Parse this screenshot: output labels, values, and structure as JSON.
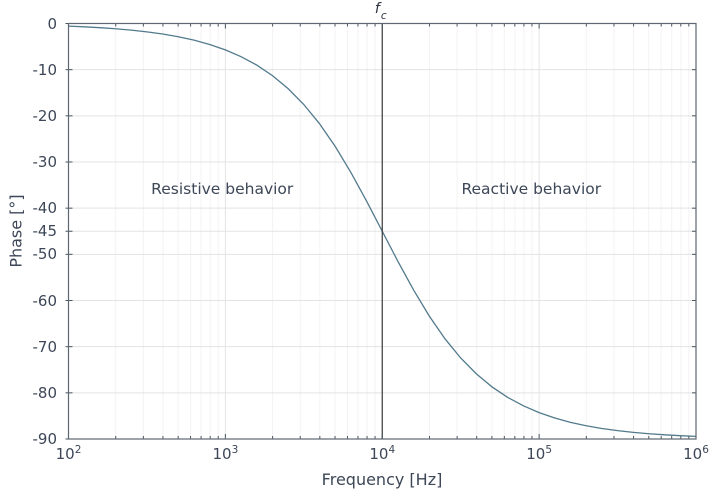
{
  "chart_data": {
    "type": "line",
    "title": "",
    "xlabel": "Frequency [Hz]",
    "ylabel": "Phase [°]",
    "xscale": "log10",
    "xlim_log10": [
      2,
      6
    ],
    "ylim": [
      -90,
      0
    ],
    "grid": true,
    "x_ticks": [
      {
        "base": "10",
        "exp": "2",
        "log10": 2
      },
      {
        "base": "10",
        "exp": "3",
        "log10": 3
      },
      {
        "base": "10",
        "exp": "4",
        "log10": 4
      },
      {
        "base": "10",
        "exp": "5",
        "log10": 5
      },
      {
        "base": "10",
        "exp": "6",
        "log10": 6
      }
    ],
    "y_ticks": [
      {
        "label": "0",
        "value": 0
      },
      {
        "label": "-10",
        "value": -10
      },
      {
        "label": "-20",
        "value": -20
      },
      {
        "label": "-30",
        "value": -30
      },
      {
        "label": "-40",
        "value": -40
      },
      {
        "label": "-45",
        "value": -45
      },
      {
        "label": "-50",
        "value": -50
      },
      {
        "label": "-60",
        "value": -60
      },
      {
        "label": "-70",
        "value": -70
      },
      {
        "label": "-80",
        "value": -80
      },
      {
        "label": "-90",
        "value": -90
      }
    ],
    "minor_tick_mantissas": [
      2,
      3,
      4,
      5,
      6,
      7,
      8,
      9
    ],
    "cutoff": {
      "log10_x": 4,
      "label_base": "f",
      "label_sub": "c"
    },
    "annotations": [
      {
        "text": "Resistive behavior",
        "log10_x": 2.98,
        "y_deg": -35.8
      },
      {
        "text": "Reactive behavior",
        "log10_x": 4.95,
        "y_deg": -35.8
      }
    ],
    "series": [
      {
        "name": "phase",
        "model": "phase_deg = -atan(f / fc), fc = 10^4 Hz",
        "x_log10": [
          2.0,
          2.1,
          2.2,
          2.3,
          2.4,
          2.5,
          2.6,
          2.7,
          2.8,
          2.9,
          3.0,
          3.1,
          3.2,
          3.3,
          3.4,
          3.5,
          3.6,
          3.7,
          3.8,
          3.9,
          4.0,
          4.1,
          4.2,
          4.3,
          4.4,
          4.5,
          4.6,
          4.7,
          4.8,
          4.9,
          5.0,
          5.1,
          5.2,
          5.3,
          5.4,
          5.5,
          5.6,
          5.7,
          5.8,
          5.9,
          6.0
        ],
        "y_deg": [
          -0.57,
          -0.72,
          -0.91,
          -1.14,
          -1.44,
          -1.81,
          -2.28,
          -2.87,
          -3.61,
          -4.54,
          -5.71,
          -7.18,
          -9.01,
          -11.29,
          -14.11,
          -17.55,
          -21.7,
          -26.62,
          -32.25,
          -38.46,
          -45.0,
          -51.54,
          -57.75,
          -63.38,
          -68.3,
          -72.45,
          -75.89,
          -78.72,
          -80.99,
          -82.82,
          -84.29,
          -85.46,
          -86.39,
          -87.13,
          -87.72,
          -88.19,
          -88.56,
          -88.86,
          -89.09,
          -89.28,
          -89.43
        ]
      }
    ],
    "colors": {
      "curve": "#527a8c",
      "cutoff_line": "#3a3a3a",
      "grid_major": "#e3e3e3",
      "grid_minor": "#f4f2f3",
      "axis": "#5d6672",
      "tick": "#4a5560",
      "text": "#3d4757"
    }
  }
}
